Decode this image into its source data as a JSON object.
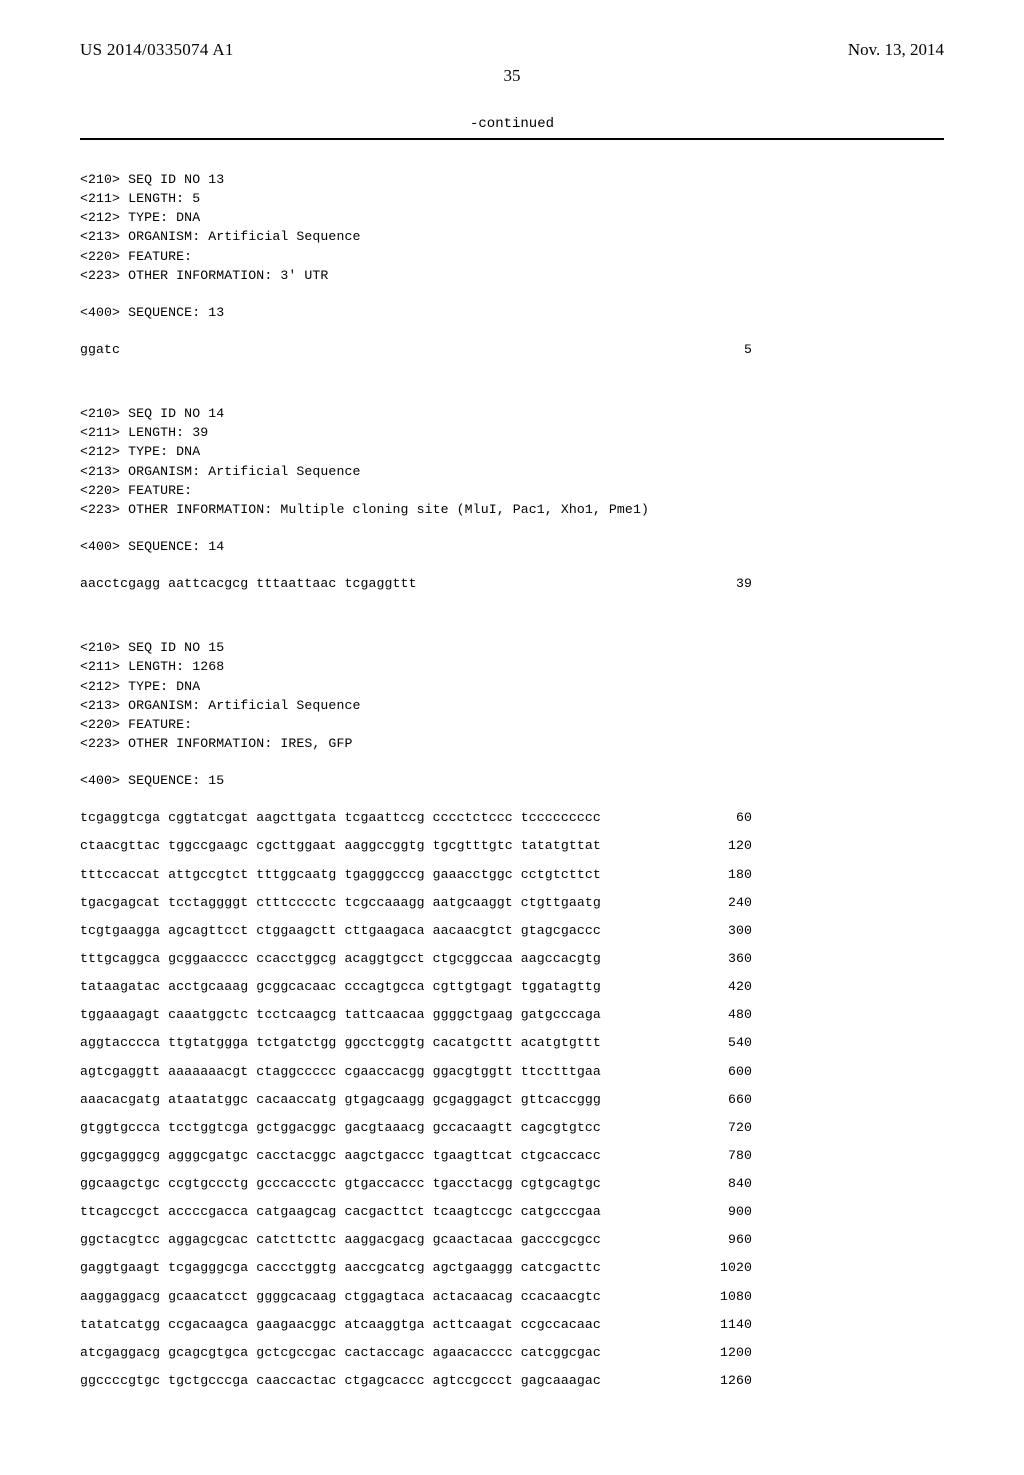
{
  "header": {
    "patent_id": "US 2014/0335074 A1",
    "pub_date": "Nov. 13, 2014",
    "page_num": "35",
    "continued": "-continued"
  },
  "entries": [
    {
      "meta": [
        "<210> SEQ ID NO 13",
        "<211> LENGTH: 5",
        "<212> TYPE: DNA",
        "<213> ORGANISM: Artificial Sequence",
        "<220> FEATURE:",
        "<223> OTHER INFORMATION: 3' UTR"
      ],
      "seqlabel": "<400> SEQUENCE: 13",
      "rows": [
        {
          "seq": "ggatc",
          "n": "5"
        }
      ]
    },
    {
      "meta": [
        "<210> SEQ ID NO 14",
        "<211> LENGTH: 39",
        "<212> TYPE: DNA",
        "<213> ORGANISM: Artificial Sequence",
        "<220> FEATURE:",
        "<223> OTHER INFORMATION: Multiple cloning site (MluI, Pac1, Xho1, Pme1)"
      ],
      "seqlabel": "<400> SEQUENCE: 14",
      "rows": [
        {
          "seq": "aacctcgagg aattcacgcg tttaattaac tcgaggttt",
          "n": "39"
        }
      ]
    },
    {
      "meta": [
        "<210> SEQ ID NO 15",
        "<211> LENGTH: 1268",
        "<212> TYPE: DNA",
        "<213> ORGANISM: Artificial Sequence",
        "<220> FEATURE:",
        "<223> OTHER INFORMATION: IRES, GFP"
      ],
      "seqlabel": "<400> SEQUENCE: 15",
      "rows": [
        {
          "seq": "tcgaggtcga cggtatcgat aagcttgata tcgaattccg cccctctccc tccccccccc",
          "n": "60"
        },
        {
          "seq": "ctaacgttac tggccgaagc cgcttggaat aaggccggtg tgcgtttgtc tatatgttat",
          "n": "120"
        },
        {
          "seq": "tttccaccat attgccgtct tttggcaatg tgagggcccg gaaacctggc cctgtcttct",
          "n": "180"
        },
        {
          "seq": "tgacgagcat tcctaggggt ctttcccctc tcgccaaagg aatgcaaggt ctgttgaatg",
          "n": "240"
        },
        {
          "seq": "tcgtgaagga agcagttcct ctggaagctt cttgaagaca aacaacgtct gtagcgaccc",
          "n": "300"
        },
        {
          "seq": "tttgcaggca gcggaacccc ccacctggcg acaggtgcct ctgcggccaa aagccacgtg",
          "n": "360"
        },
        {
          "seq": "tataagatac acctgcaaag gcggcacaac cccagtgcca cgttgtgagt tggatagttg",
          "n": "420"
        },
        {
          "seq": "tggaaagagt caaatggctc tcctcaagcg tattcaacaa ggggctgaag gatgcccaga",
          "n": "480"
        },
        {
          "seq": "aggtacccca ttgtatggga tctgatctgg ggcctcggtg cacatgcttt acatgtgttt",
          "n": "540"
        },
        {
          "seq": "agtcgaggtt aaaaaaacgt ctaggccccc cgaaccacgg ggacgtggtt ttcctttgaa",
          "n": "600"
        },
        {
          "seq": "aaacacgatg ataatatggc cacaaccatg gtgagcaagg gcgaggagct gttcaccggg",
          "n": "660"
        },
        {
          "seq": "gtggtgccca tcctggtcga gctggacggc gacgtaaacg gccacaagtt cagcgtgtcc",
          "n": "720"
        },
        {
          "seq": "ggcgagggcg agggcgatgc cacctacggc aagctgaccc tgaagttcat ctgcaccacc",
          "n": "780"
        },
        {
          "seq": "ggcaagctgc ccgtgccctg gcccaccctc gtgaccaccc tgacctacgg cgtgcagtgc",
          "n": "840"
        },
        {
          "seq": "ttcagccgct accccgacca catgaagcag cacgacttct tcaagtccgc catgcccgaa",
          "n": "900"
        },
        {
          "seq": "ggctacgtcc aggagcgcac catcttcttc aaggacgacg gcaactacaa gacccgcgcc",
          "n": "960"
        },
        {
          "seq": "gaggtgaagt tcgagggcga caccctggtg aaccgcatcg agctgaaggg catcgacttc",
          "n": "1020"
        },
        {
          "seq": "aaggaggacg gcaacatcct ggggcacaag ctggagtaca actacaacag ccacaacgtc",
          "n": "1080"
        },
        {
          "seq": "tatatcatgg ccgacaagca gaagaacggc atcaaggtga acttcaagat ccgccacaac",
          "n": "1140"
        },
        {
          "seq": "atcgaggacg gcagcgtgca gctcgccgac cactaccagc agaacacccc catcggcgac",
          "n": "1200"
        },
        {
          "seq": "ggccccgtgc tgctgcccga caaccactac ctgagcaccc agtccgccct gagcaaagac",
          "n": "1260"
        }
      ]
    }
  ]
}
